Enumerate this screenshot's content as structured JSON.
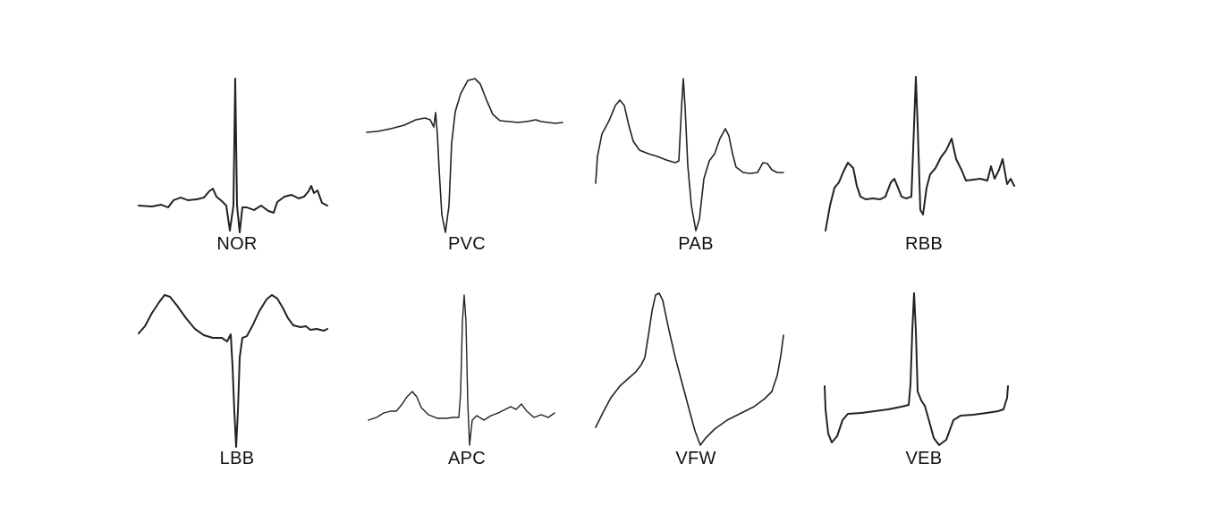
{
  "figure": {
    "panels": [
      {
        "id": "NOR",
        "label": "NOR"
      },
      {
        "id": "PVC",
        "label": "PVC"
      },
      {
        "id": "PAB",
        "label": "PAB"
      },
      {
        "id": "RBB",
        "label": "RBB"
      },
      {
        "id": "LBB",
        "label": "LBB"
      },
      {
        "id": "APC",
        "label": "APC"
      },
      {
        "id": "VFW",
        "label": "VFW"
      },
      {
        "id": "VEB",
        "label": "VEB"
      }
    ],
    "trace_color": "#222222",
    "background": "#ffffff"
  }
}
